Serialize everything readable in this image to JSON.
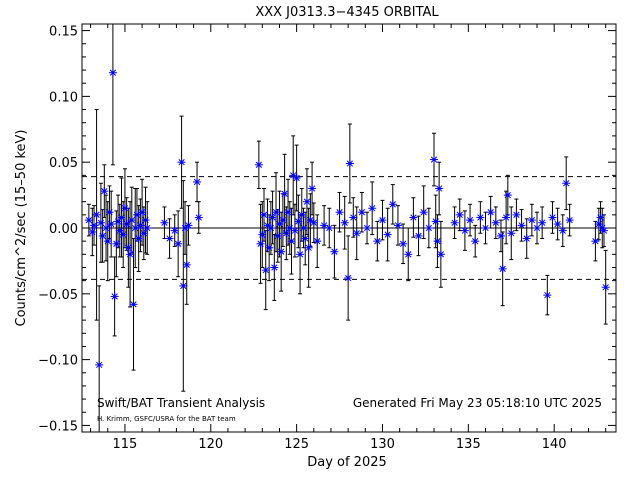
{
  "chart_data": {
    "type": "scatter",
    "title": "XXX J0313.3−4345 ORBITAL",
    "xlabel": "Day of 2025",
    "ylabel": "Counts/cm^2/sec (15–50 keV)",
    "xlim": [
      112.5,
      143.6
    ],
    "ylim": [
      -0.155,
      0.155
    ],
    "x_ticks": [
      115,
      120,
      125,
      130,
      135,
      140
    ],
    "x_tick_labels": [
      "115",
      "120",
      "125",
      "130",
      "135",
      "140"
    ],
    "y_ticks": [
      -0.15,
      -0.1,
      -0.05,
      0.0,
      0.05,
      0.1,
      0.15
    ],
    "y_tick_labels": [
      "−0.15",
      "−0.10",
      "−0.05",
      "0.00",
      "0.05",
      "0.10",
      "0.15"
    ],
    "zero_line": 0.0,
    "threshold_lines": [
      0.039,
      -0.039
    ],
    "footer_left": "Swift/BAT Transient Analysis",
    "footer_credit": "H. Krimm, GSFC/USRA for the BAT team",
    "footer_right": "Generated Fri May 23 05:18:10 UTC 2025",
    "marker_color": "#0000ff",
    "errorbar_color": "#000000",
    "series": [
      {
        "x": [
          112.9,
          113.1,
          113.2,
          113.35,
          113.5,
          113.6,
          113.7,
          113.8,
          113.9,
          114.0,
          114.1,
          114.2,
          114.3,
          114.4,
          114.5,
          114.6,
          114.7,
          114.8,
          114.9,
          115.0,
          115.1,
          115.2,
          115.3,
          115.4,
          115.5,
          115.6,
          115.7,
          115.8,
          115.9,
          116.0,
          116.1,
          116.2,
          116.3,
          117.3,
          117.6,
          117.9,
          118.1,
          118.3,
          118.4,
          118.5,
          118.6,
          118.7,
          119.2,
          119.3,
          122.8,
          122.9,
          123.0,
          123.1,
          123.2,
          123.3,
          123.4,
          123.5,
          123.6,
          123.7,
          123.8,
          123.9,
          124.0,
          124.1,
          124.2,
          124.3,
          124.4,
          124.5,
          124.6,
          124.7,
          124.8,
          124.9,
          125.0,
          125.1,
          125.2,
          125.3,
          125.4,
          125.5,
          125.6,
          125.7,
          125.8,
          125.9,
          126.0,
          126.2,
          126.6,
          126.9,
          127.2,
          127.5,
          127.8,
          128.0,
          128.1,
          128.3,
          128.5,
          128.8,
          129.1,
          129.4,
          129.7,
          130.0,
          130.3,
          130.6,
          130.9,
          131.2,
          131.5,
          131.8,
          132.1,
          132.4,
          132.7,
          133.0,
          133.1,
          133.2,
          133.3,
          133.4,
          134.2,
          134.5,
          134.8,
          135.1,
          135.4,
          135.7,
          136.0,
          136.3,
          136.6,
          136.9,
          137.0,
          137.2,
          137.3,
          137.5,
          137.8,
          138.1,
          138.4,
          138.7,
          139.0,
          139.3,
          139.6,
          139.9,
          140.2,
          140.5,
          140.7,
          140.9,
          142.4,
          142.6,
          142.7,
          142.8,
          142.9,
          143.0
        ],
        "y": [
          0.006,
          -0.003,
          0.002,
          0.01,
          -0.104,
          0.004,
          -0.006,
          0.028,
          0.0,
          -0.01,
          0.012,
          0.003,
          0.118,
          -0.052,
          -0.012,
          0.005,
          -0.002,
          0.008,
          -0.005,
          0.015,
          0.003,
          -0.015,
          -0.02,
          0.006,
          -0.058,
          0.0,
          0.01,
          -0.008,
          0.002,
          0.012,
          -0.004,
          0.006,
          0.0,
          0.004,
          -0.008,
          -0.002,
          -0.012,
          0.05,
          -0.044,
          0.0,
          -0.028,
          0.002,
          0.035,
          0.008,
          0.048,
          -0.012,
          -0.005,
          0.01,
          -0.032,
          0.002,
          -0.015,
          0.0,
          0.008,
          -0.03,
          0.012,
          -0.006,
          0.003,
          -0.018,
          0.006,
          0.026,
          -0.004,
          0.012,
          0.0,
          -0.01,
          0.04,
          -0.002,
          0.038,
          0.005,
          -0.02,
          0.01,
          0.0,
          -0.008,
          0.02,
          -0.015,
          0.006,
          0.03,
          0.004,
          -0.01,
          0.002,
          0.0,
          -0.018,
          0.012,
          0.004,
          -0.038,
          0.049,
          0.008,
          -0.004,
          0.012,
          0.0,
          0.015,
          -0.01,
          0.006,
          -0.005,
          0.018,
          0.002,
          -0.012,
          -0.02,
          0.008,
          -0.006,
          0.012,
          0.0,
          0.052,
          0.005,
          -0.01,
          0.03,
          -0.02,
          0.004,
          0.01,
          -0.002,
          0.006,
          -0.01,
          0.008,
          0.0,
          0.012,
          0.004,
          -0.006,
          -0.031,
          0.008,
          0.025,
          -0.004,
          0.01,
          0.002,
          -0.008,
          0.006,
          0.0,
          0.004,
          -0.051,
          0.008,
          0.003,
          -0.002,
          0.034,
          0.006,
          -0.01,
          0.003,
          0.008,
          0.0,
          -0.002,
          -0.045
        ],
        "err": [
          0.012,
          0.018,
          0.015,
          0.08,
          0.06,
          0.03,
          0.02,
          0.02,
          0.025,
          0.03,
          0.02,
          0.025,
          0.07,
          0.03,
          0.025,
          0.02,
          0.02,
          0.03,
          0.025,
          0.03,
          0.02,
          0.03,
          0.04,
          0.025,
          0.05,
          0.03,
          0.02,
          0.025,
          0.02,
          0.025,
          0.02,
          0.025,
          0.02,
          0.012,
          0.015,
          0.012,
          0.025,
          0.035,
          0.08,
          0.02,
          0.03,
          0.015,
          0.015,
          0.012,
          0.018,
          0.03,
          0.025,
          0.02,
          0.03,
          0.02,
          0.025,
          0.02,
          0.02,
          0.025,
          0.03,
          0.02,
          0.025,
          0.03,
          0.02,
          0.03,
          0.02,
          0.025,
          0.02,
          0.025,
          0.03,
          0.02,
          0.025,
          0.02,
          0.03,
          0.02,
          0.015,
          0.02,
          0.025,
          0.03,
          0.02,
          0.02,
          0.015,
          0.02,
          0.015,
          0.015,
          0.02,
          0.015,
          0.02,
          0.032,
          0.03,
          0.015,
          0.02,
          0.015,
          0.012,
          0.02,
          0.015,
          0.015,
          0.02,
          0.015,
          0.015,
          0.015,
          0.02,
          0.015,
          0.015,
          0.02,
          0.015,
          0.02,
          0.02,
          0.02,
          0.02,
          0.025,
          0.012,
          0.012,
          0.015,
          0.012,
          0.012,
          0.012,
          0.012,
          0.012,
          0.012,
          0.012,
          0.028,
          0.02,
          0.015,
          0.02,
          0.012,
          0.012,
          0.015,
          0.012,
          0.012,
          0.012,
          0.015,
          0.012,
          0.012,
          0.012,
          0.02,
          0.012,
          0.015,
          0.012,
          0.012,
          0.015,
          0.012,
          0.028
        ]
      }
    ]
  }
}
